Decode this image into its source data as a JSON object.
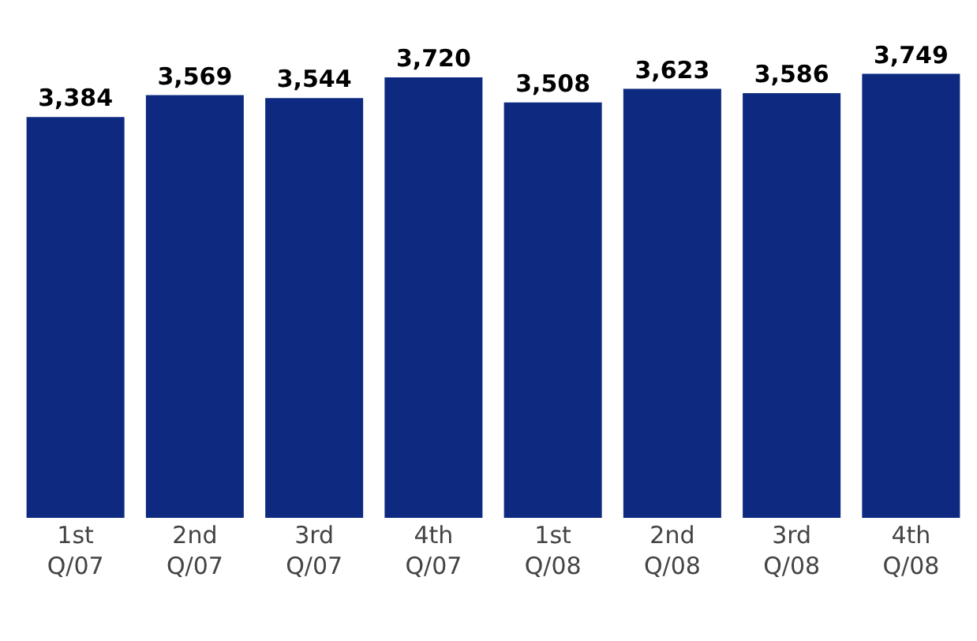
{
  "chart_data": {
    "type": "bar",
    "categories": [
      "1st\nQ/07",
      "2nd\nQ/07",
      "3rd\nQ/07",
      "4th\nQ/07",
      "1st\nQ/08",
      "2nd\nQ/08",
      "3rd\nQ/08",
      "4th\nQ/08"
    ],
    "series": [
      {
        "color": "#0d2a80",
        "values": [
          3384,
          3569,
          3544,
          3720,
          3508,
          3623,
          3586,
          3749
        ],
        "value_labels": [
          "3,384",
          "3,569",
          "3,544",
          "3,720",
          "3,508",
          "3,623",
          "3,586",
          "3,749"
        ]
      }
    ]
  }
}
